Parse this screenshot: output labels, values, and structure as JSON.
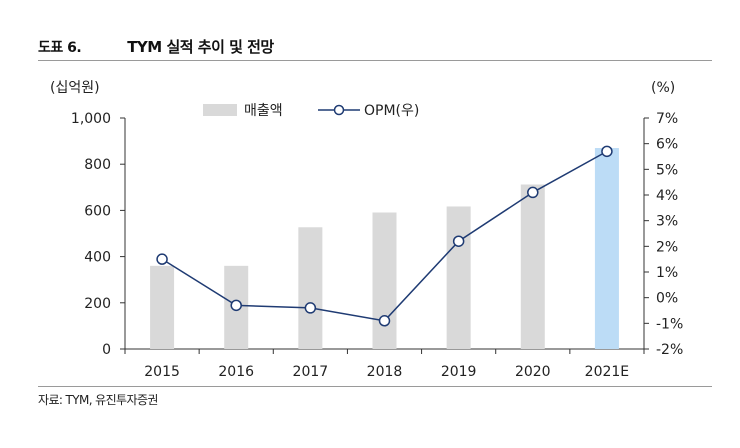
{
  "figure": {
    "number": "도표 6.",
    "title": "TYM 실적 추이 및 전망",
    "source": "자료: TYM, 유진투자증권"
  },
  "chart_data": {
    "type": "bar+line",
    "title": "TYM 실적 추이 및 전망",
    "categories": [
      "2015",
      "2016",
      "2017",
      "2018",
      "2019",
      "2020",
      "2021E"
    ],
    "series": [
      {
        "name": "매출액",
        "type": "bar",
        "axis": "left",
        "values": [
          360,
          360,
          527,
          591,
          617,
          712,
          870
        ]
      },
      {
        "name": "OPM(우)",
        "type": "line",
        "axis": "right",
        "values": [
          1.5,
          -0.3,
          -0.4,
          -0.9,
          2.2,
          4.1,
          5.7
        ]
      }
    ],
    "left_axis": {
      "unit_label": "(십억원)",
      "min": 0,
      "max": 1000,
      "ticks": [
        0,
        200,
        400,
        600,
        800,
        1000
      ],
      "tick_labels": [
        "0",
        "200",
        "400",
        "600",
        "800",
        "1,000"
      ]
    },
    "right_axis": {
      "unit_label": "(%)",
      "min": -2,
      "max": 7,
      "ticks": [
        -2,
        -1,
        0,
        1,
        2,
        3,
        4,
        5,
        6,
        7
      ],
      "tick_labels": [
        "-2%",
        "-1%",
        "0%",
        "1%",
        "2%",
        "3%",
        "4%",
        "5%",
        "6%",
        "7%"
      ]
    },
    "legend": {
      "placement": "top-center",
      "items": [
        "매출액",
        "OPM(우)"
      ]
    },
    "colors": {
      "bar": "#d9d9d9",
      "bar_forecast": "#bcdcf6",
      "line": "#1f3b73",
      "marker_fill": "#ffffff",
      "axis": "#333333"
    },
    "forecast_category": "2021E"
  }
}
